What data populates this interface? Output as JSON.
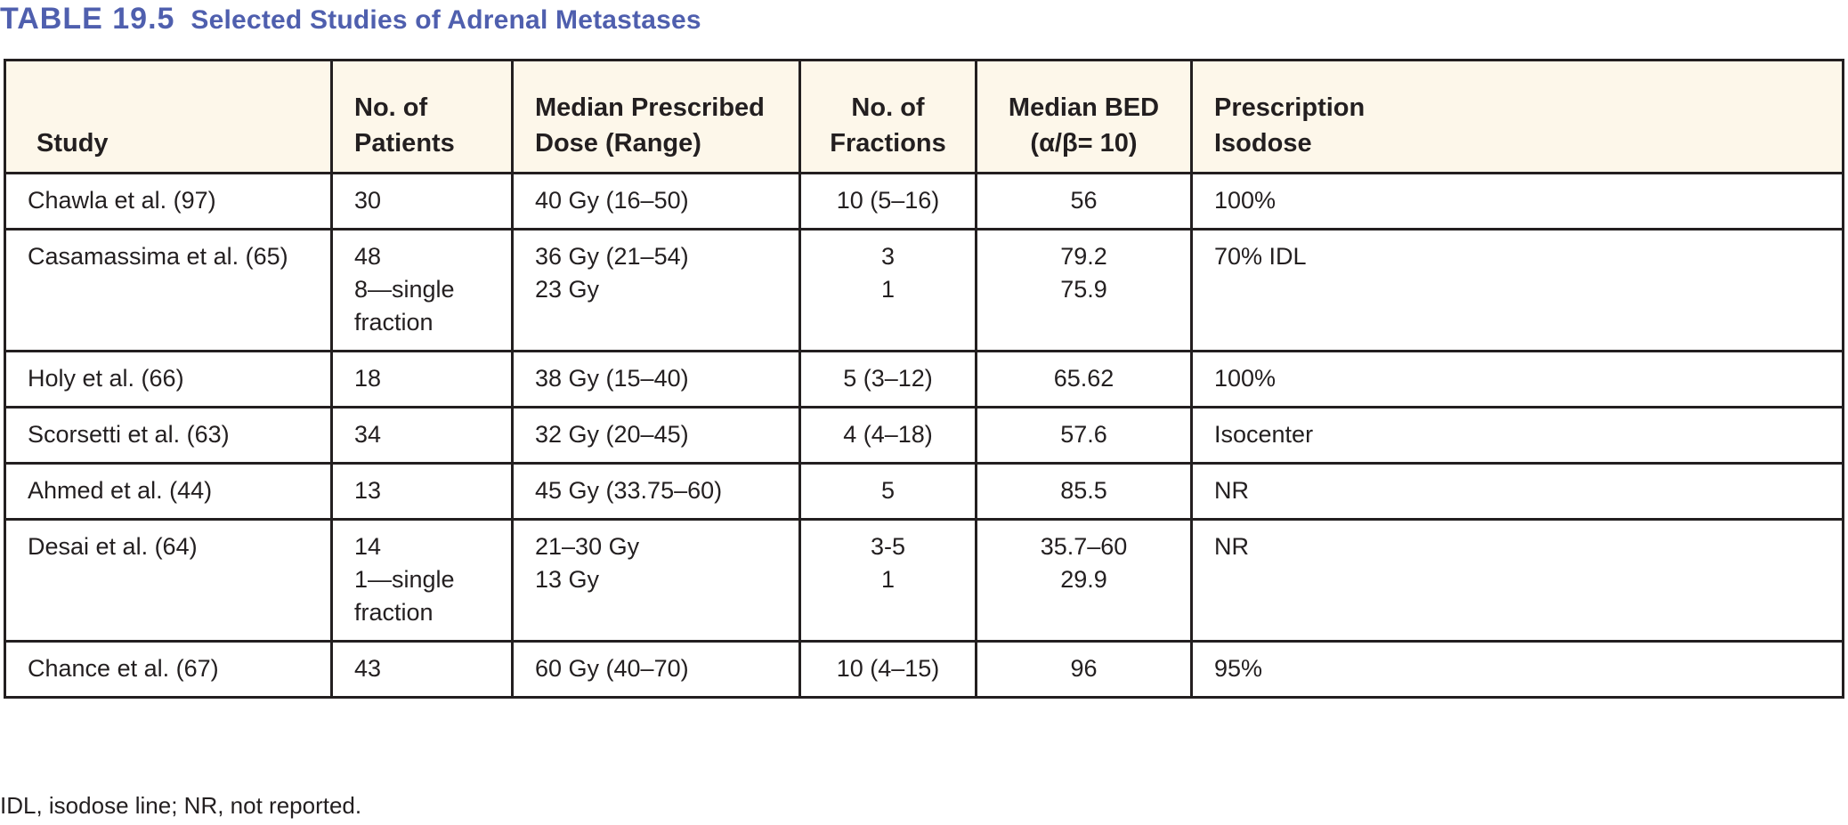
{
  "title": {
    "number": "TABLE 19.5",
    "text": "Selected Studies of Adrenal Metastases"
  },
  "colors": {
    "title": "#4f5fae",
    "header_bg": "#fdf7ea",
    "border": "#231f20"
  },
  "table": {
    "headers": [
      "Study",
      "No. of\nPatients",
      "Median Prescribed\nDose (Range)",
      "No. of\nFractions",
      "Median BED\n(α/β= 10)",
      "Prescription\nIsodose"
    ],
    "rows": [
      [
        "Chawla et al. (97)",
        "30",
        "40 Gy (16–50)",
        "10 (5–16)",
        "56",
        "100%"
      ],
      [
        "Casamassima et al. (65)",
        "48\n8—single\nfraction",
        "36 Gy (21–54)\n23 Gy",
        "3\n1",
        "79.2\n75.9",
        "70% IDL"
      ],
      [
        "Holy et al. (66)",
        "18",
        "38 Gy (15–40)",
        "5 (3–12)",
        "65.62",
        "100%"
      ],
      [
        "Scorsetti et al. (63)",
        "34",
        "32 Gy (20–45)",
        "4 (4–18)",
        "57.6",
        "Isocenter"
      ],
      [
        "Ahmed et al. (44)",
        "13",
        "45 Gy (33.75–60)",
        "5",
        "85.5",
        "NR"
      ],
      [
        "Desai et al. (64)",
        "14\n1—single\nfraction",
        "21–30 Gy\n13 Gy",
        "3-5\n1",
        "35.7–60\n29.9",
        "NR"
      ],
      [
        "Chance et al. (67)",
        "43",
        "60 Gy (40–70)",
        "10 (4–15)",
        "96",
        "95%"
      ]
    ]
  },
  "footnote": "IDL, isodose line; NR, not reported."
}
